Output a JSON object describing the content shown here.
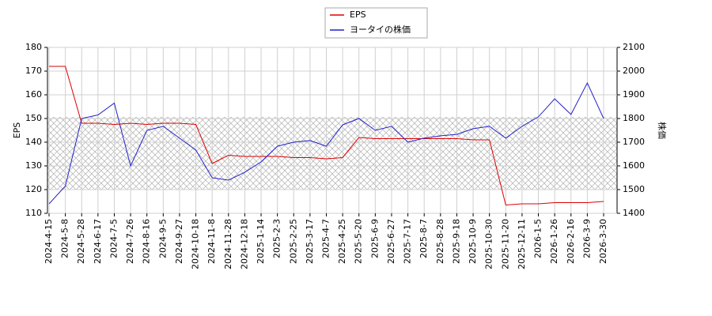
{
  "chart_data": {
    "type": "line",
    "categories": [
      "2024-4-15",
      "2024-5-8",
      "2024-5-28",
      "2024-6-17",
      "2024-7-5",
      "2024-7-26",
      "2024-8-16",
      "2024-9-5",
      "2024-9-27",
      "2024-10-18",
      "2024-11-8",
      "2024-11-28",
      "2024-12-18",
      "2025-1-14",
      "2025-2-3",
      "2025-2-25",
      "2025-3-17",
      "2025-4-7",
      "2025-4-25",
      "2025-5-20",
      "2025-6-9",
      "2025-6-27",
      "2025-7-17",
      "2025-8-7",
      "2025-8-28",
      "2025-9-18",
      "2025-10-9",
      "2025-10-30",
      "2025-11-20",
      "2025-12-11",
      "2026-1-5",
      "2026-1-26",
      "2026-2-16",
      "2026-3-9",
      "2026-3-30"
    ],
    "ylabel": "EPS",
    "y2label": "株価",
    "ylim": [
      110,
      180
    ],
    "yticks": [
      110,
      120,
      130,
      140,
      150,
      160,
      170,
      180
    ],
    "y2lim": [
      1400,
      2100
    ],
    "y2ticks": [
      1400,
      1500,
      1600,
      1700,
      1800,
      1900,
      2000,
      2100
    ],
    "grid": true,
    "series": [
      {
        "name": "EPS",
        "color": "#dd0000",
        "values": [
          172,
          172,
          148,
          148,
          147.5,
          148,
          147.5,
          148,
          148,
          147.5,
          131,
          134.5,
          134,
          134,
          134,
          133.5,
          133.5,
          133,
          133.5,
          142,
          141.5,
          141.5,
          141.5,
          141.5,
          141.5,
          141.5,
          141,
          141,
          113.5,
          114,
          114,
          114.5,
          114.5,
          114.5,
          115
        ]
      },
      {
        "name": "ヨータイの株価",
        "color": "#2222cc",
        "axis": "y2",
        "values": [
          1440,
          1515,
          1800,
          1815,
          1865,
          1600,
          1750,
          1767,
          1717,
          1667,
          1550,
          1540,
          1573,
          1617,
          1683,
          1700,
          1707,
          1683,
          1773,
          1800,
          1750,
          1767,
          1700,
          1717,
          1727,
          1733,
          1757,
          1767,
          1717,
          1767,
          1807,
          1883,
          1817,
          1950,
          1800
        ]
      }
    ]
  }
}
